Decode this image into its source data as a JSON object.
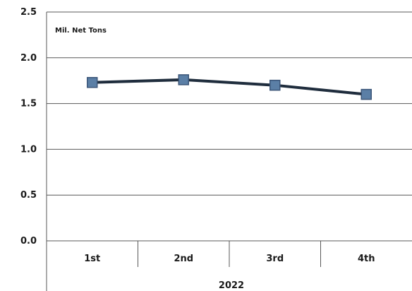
{
  "chart_data": {
    "type": "line",
    "unit_label": "Mil. Net Tons",
    "categories": [
      "1st",
      "2nd",
      "3rd",
      "4th"
    ],
    "group_label": "2022",
    "yticks": [
      "0.0",
      "0.5",
      "1.0",
      "1.5",
      "2.0",
      "2.5"
    ],
    "ylim": [
      0,
      2.5
    ],
    "grid": true,
    "legend": "none",
    "series": [
      {
        "values": [
          1.73,
          1.76,
          1.7,
          1.6
        ]
      }
    ],
    "colors": {
      "line": "#1f2d3d",
      "marker_fill": "#5b7fa6",
      "marker_stroke": "#3b5578"
    }
  }
}
